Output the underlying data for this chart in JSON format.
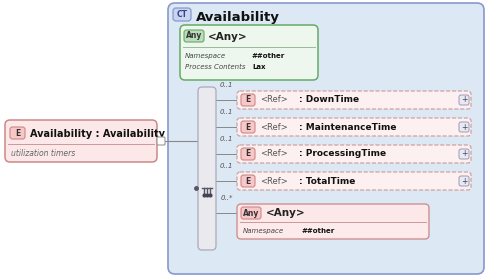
{
  "bg_outer": "#ffffff",
  "bg_main_box": "#dde8f5",
  "bg_main_box_border": "#8899cc",
  "ct_label": "CT",
  "ct_title": "Availability",
  "any_box_bg": "#edf7ed",
  "any_box_border": "#66aa66",
  "any_label": "Any",
  "any_title": "<Any>",
  "any_ns_label": "Namespace",
  "any_ns_value": "##other",
  "any_pc_label": "Process Contents",
  "any_pc_value": "Lax",
  "left_box_bg": "#fce8e8",
  "left_box_border": "#cc8888",
  "left_e_label": "E",
  "left_title": "Availability : Availability",
  "left_subtitle": "utilization timers",
  "elements": [
    {
      "label": "<Ref>",
      "name": ": DownTime",
      "mult": "0..1"
    },
    {
      "label": "<Ref>",
      "name": ": MaintenanceTime",
      "mult": "0..1"
    },
    {
      "label": "<Ref>",
      "name": ": ProcessingTime",
      "mult": "0..1"
    },
    {
      "label": "<Ref>",
      "name": ": TotalTime",
      "mult": "0..1"
    }
  ],
  "bottom_any_label": "Any",
  "bottom_any_title": "<Any>",
  "bottom_any_mult": "0..*",
  "bottom_any_ns_label": "Namespace",
  "bottom_any_ns_value": "##other"
}
